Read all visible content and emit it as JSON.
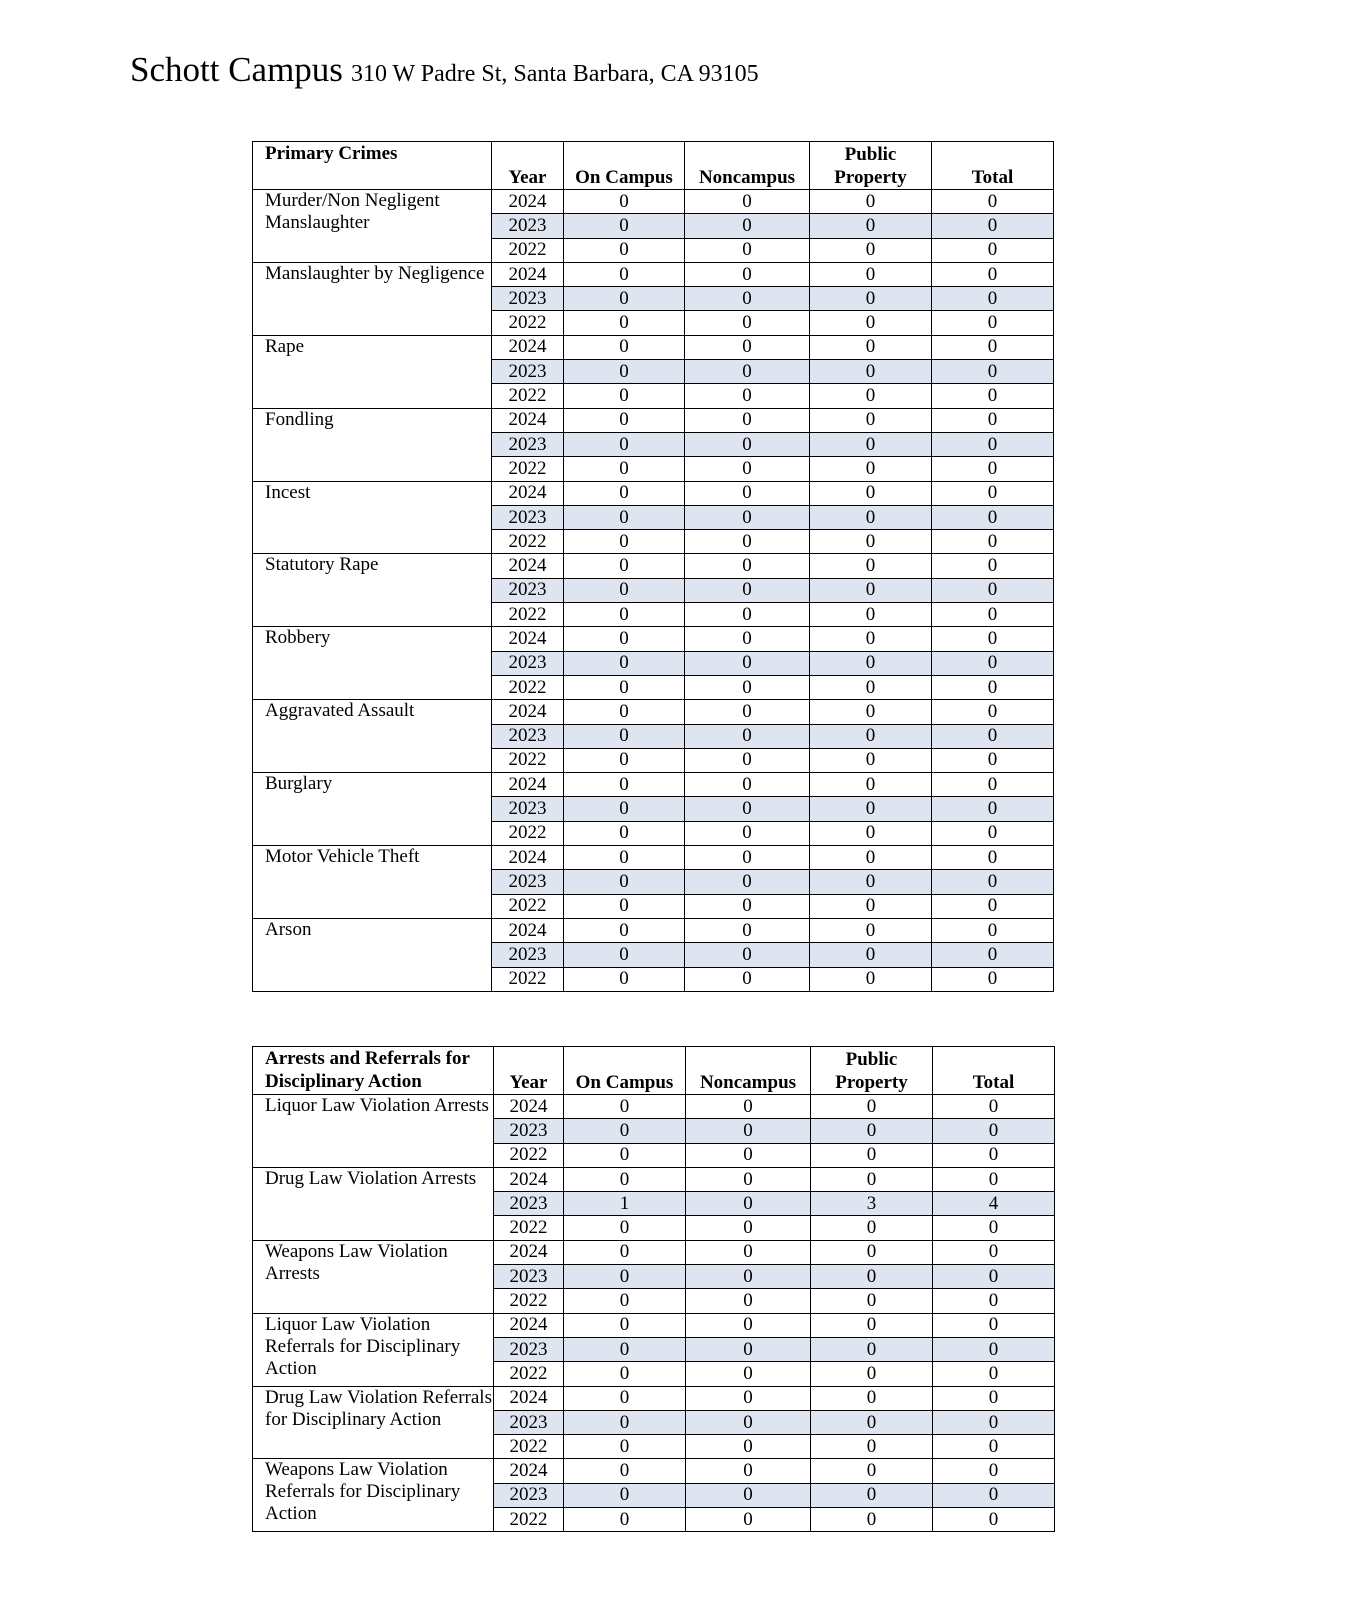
{
  "title": {
    "campus": "Schott Campus",
    "address": "310 W Padre St, Santa Barbara, CA 93105"
  },
  "colors": {
    "highlight_row": "#dfe5f0"
  },
  "primary_table": {
    "headers": [
      "Primary Crimes",
      "Year",
      "On Campus",
      "Noncampus",
      "Public Property",
      "Total"
    ],
    "groups": [
      {
        "label": "Murder/Non Negligent Manslaughter",
        "rows": [
          [
            "2024",
            "0",
            "0",
            "0",
            "0"
          ],
          [
            "2023",
            "0",
            "0",
            "0",
            "0"
          ],
          [
            "2022",
            "0",
            "0",
            "0",
            "0"
          ]
        ]
      },
      {
        "label": "Manslaughter by Negligence",
        "rows": [
          [
            "2024",
            "0",
            "0",
            "0",
            "0"
          ],
          [
            "2023",
            "0",
            "0",
            "0",
            "0"
          ],
          [
            "2022",
            "0",
            "0",
            "0",
            "0"
          ]
        ]
      },
      {
        "label": "Rape",
        "rows": [
          [
            "2024",
            "0",
            "0",
            "0",
            "0"
          ],
          [
            "2023",
            "0",
            "0",
            "0",
            "0"
          ],
          [
            "2022",
            "0",
            "0",
            "0",
            "0"
          ]
        ]
      },
      {
        "label": "Fondling",
        "rows": [
          [
            "2024",
            "0",
            "0",
            "0",
            "0"
          ],
          [
            "2023",
            "0",
            "0",
            "0",
            "0"
          ],
          [
            "2022",
            "0",
            "0",
            "0",
            "0"
          ]
        ]
      },
      {
        "label": "Incest",
        "rows": [
          [
            "2024",
            "0",
            "0",
            "0",
            "0"
          ],
          [
            "2023",
            "0",
            "0",
            "0",
            "0"
          ],
          [
            "2022",
            "0",
            "0",
            "0",
            "0"
          ]
        ]
      },
      {
        "label": "Statutory Rape",
        "rows": [
          [
            "2024",
            "0",
            "0",
            "0",
            "0"
          ],
          [
            "2023",
            "0",
            "0",
            "0",
            "0"
          ],
          [
            "2022",
            "0",
            "0",
            "0",
            "0"
          ]
        ]
      },
      {
        "label": "Robbery",
        "rows": [
          [
            "2024",
            "0",
            "0",
            "0",
            "0"
          ],
          [
            "2023",
            "0",
            "0",
            "0",
            "0"
          ],
          [
            "2022",
            "0",
            "0",
            "0",
            "0"
          ]
        ]
      },
      {
        "label": "Aggravated Assault",
        "rows": [
          [
            "2024",
            "0",
            "0",
            "0",
            "0"
          ],
          [
            "2023",
            "0",
            "0",
            "0",
            "0"
          ],
          [
            "2022",
            "0",
            "0",
            "0",
            "0"
          ]
        ]
      },
      {
        "label": "Burglary",
        "rows": [
          [
            "2024",
            "0",
            "0",
            "0",
            "0"
          ],
          [
            "2023",
            "0",
            "0",
            "0",
            "0"
          ],
          [
            "2022",
            "0",
            "0",
            "0",
            "0"
          ]
        ]
      },
      {
        "label": "Motor Vehicle Theft",
        "rows": [
          [
            "2024",
            "0",
            "0",
            "0",
            "0"
          ],
          [
            "2023",
            "0",
            "0",
            "0",
            "0"
          ],
          [
            "2022",
            "0",
            "0",
            "0",
            "0"
          ]
        ]
      },
      {
        "label": "Arson",
        "rows": [
          [
            "2024",
            "0",
            "0",
            "0",
            "0"
          ],
          [
            "2023",
            "0",
            "0",
            "0",
            "0"
          ],
          [
            "2022",
            "0",
            "0",
            "0",
            "0"
          ]
        ]
      }
    ]
  },
  "arrests_table": {
    "headers": [
      "Arrests and Referrals for Disciplinary Action",
      "Year",
      "On Campus",
      "Noncampus",
      "Public Property",
      "Total"
    ],
    "groups": [
      {
        "label": "Liquor Law Violation Arrests",
        "rows": [
          [
            "2024",
            "0",
            "0",
            "0",
            "0"
          ],
          [
            "2023",
            "0",
            "0",
            "0",
            "0"
          ],
          [
            "2022",
            "0",
            "0",
            "0",
            "0"
          ]
        ]
      },
      {
        "label": "Drug Law Violation Arrests",
        "rows": [
          [
            "2024",
            "0",
            "0",
            "0",
            "0"
          ],
          [
            "2023",
            "1",
            "0",
            "3",
            "4"
          ],
          [
            "2022",
            "0",
            "0",
            "0",
            "0"
          ]
        ]
      },
      {
        "label": "Weapons Law Violation Arrests",
        "rows": [
          [
            "2024",
            "0",
            "0",
            "0",
            "0"
          ],
          [
            "2023",
            "0",
            "0",
            "0",
            "0"
          ],
          [
            "2022",
            "0",
            "0",
            "0",
            "0"
          ]
        ]
      },
      {
        "label": "Liquor Law Violation Referrals for Disciplinary Action",
        "rows": [
          [
            "2024",
            "0",
            "0",
            "0",
            "0"
          ],
          [
            "2023",
            "0",
            "0",
            "0",
            "0"
          ],
          [
            "2022",
            "0",
            "0",
            "0",
            "0"
          ]
        ]
      },
      {
        "label": "Drug Law Violation Referrals for Disciplinary Action",
        "rows": [
          [
            "2024",
            "0",
            "0",
            "0",
            "0"
          ],
          [
            "2023",
            "0",
            "0",
            "0",
            "0"
          ],
          [
            "2022",
            "0",
            "0",
            "0",
            "0"
          ]
        ]
      },
      {
        "label": "Weapons Law Violation Referrals for Disciplinary Action",
        "rows": [
          [
            "2024",
            "0",
            "0",
            "0",
            "0"
          ],
          [
            "2023",
            "0",
            "0",
            "0",
            "0"
          ],
          [
            "2022",
            "0",
            "0",
            "0",
            "0"
          ]
        ]
      }
    ]
  }
}
